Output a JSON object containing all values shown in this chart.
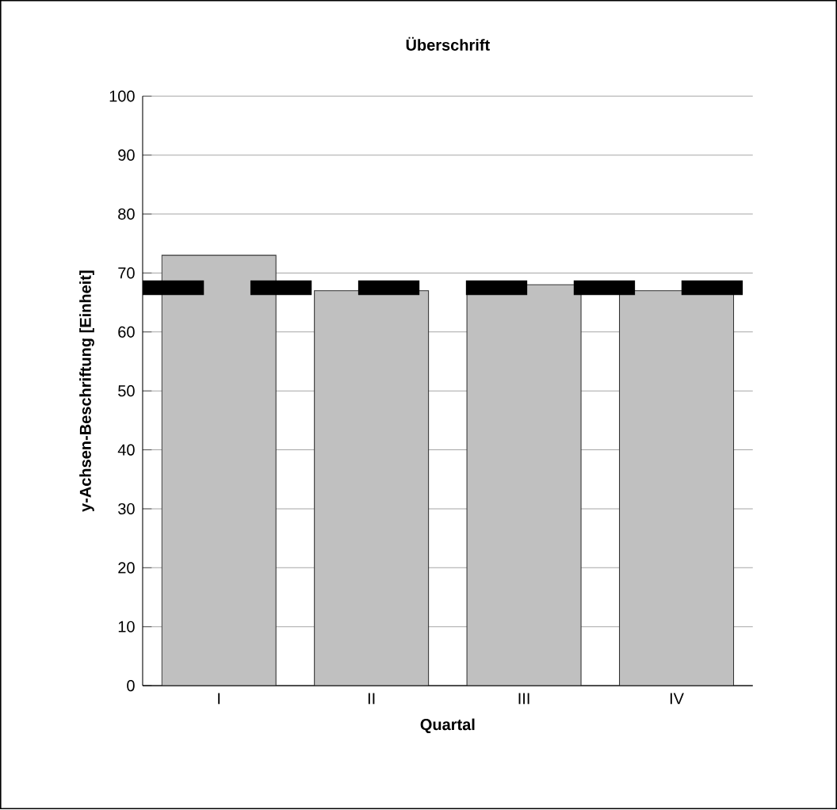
{
  "chart_data": {
    "type": "bar",
    "title": "Überschrift",
    "xlabel": "Quartal",
    "ylabel": "y-Achsen-Beschriftung [Einheit]",
    "categories": [
      "I",
      "II",
      "III",
      "IV"
    ],
    "values": [
      73,
      67,
      68,
      67
    ],
    "color": "#c0c0c0",
    "ylim": [
      0,
      100
    ],
    "yticks": [
      0,
      10,
      20,
      30,
      40,
      50,
      60,
      70,
      80,
      90,
      100
    ],
    "grid": "y",
    "ref_lines": [
      {
        "axis": "y",
        "value": 67.5,
        "color": "#000000",
        "line_style": "dashed"
      }
    ]
  }
}
